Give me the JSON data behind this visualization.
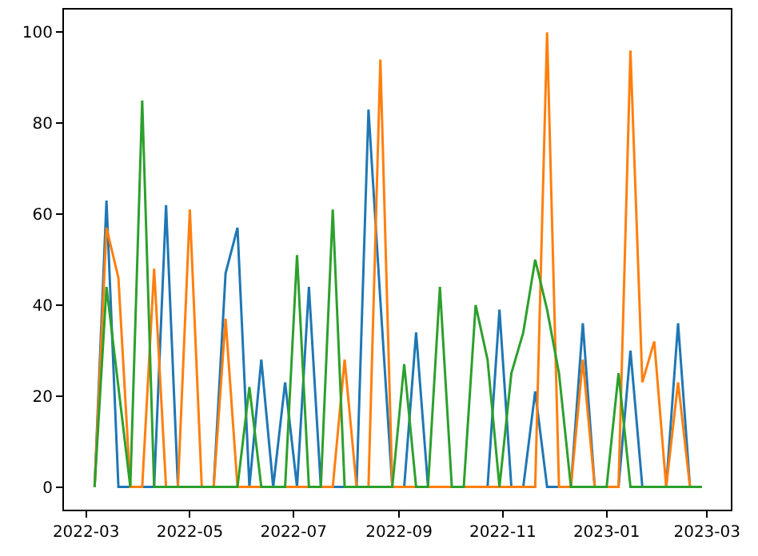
{
  "chart_data": {
    "type": "line",
    "x": [
      "2022-03-06",
      "2022-03-13",
      "2022-03-20",
      "2022-03-27",
      "2022-04-03",
      "2022-04-10",
      "2022-04-17",
      "2022-04-24",
      "2022-05-01",
      "2022-05-08",
      "2022-05-15",
      "2022-05-22",
      "2022-05-29",
      "2022-06-05",
      "2022-06-12",
      "2022-06-19",
      "2022-06-26",
      "2022-07-03",
      "2022-07-10",
      "2022-07-17",
      "2022-07-24",
      "2022-07-31",
      "2022-08-07",
      "2022-08-14",
      "2022-08-21",
      "2022-08-28",
      "2022-09-04",
      "2022-09-11",
      "2022-09-18",
      "2022-09-25",
      "2022-10-02",
      "2022-10-09",
      "2022-10-16",
      "2022-10-23",
      "2022-10-30",
      "2022-11-06",
      "2022-11-13",
      "2022-11-20",
      "2022-11-27",
      "2022-12-04",
      "2022-12-11",
      "2022-12-18",
      "2022-12-25",
      "2023-01-01",
      "2023-01-08",
      "2023-01-15",
      "2023-01-22",
      "2023-01-29",
      "2023-02-05",
      "2023-02-12",
      "2023-02-19",
      "2023-02-26"
    ],
    "series": [
      {
        "color": "#1f77b4",
        "values": [
          0,
          63,
          0,
          0,
          0,
          0,
          62,
          0,
          0,
          0,
          0,
          47,
          57,
          0,
          28,
          0,
          23,
          0,
          44,
          0,
          0,
          0,
          0,
          83,
          41,
          0,
          0,
          34,
          0,
          0,
          0,
          0,
          0,
          0,
          39,
          0,
          0,
          21,
          0,
          0,
          0,
          36,
          0,
          0,
          0,
          30,
          0,
          0,
          0,
          36,
          0,
          0
        ]
      },
      {
        "color": "#ff7f0e",
        "values": [
          0,
          57,
          46,
          0,
          0,
          48,
          0,
          0,
          61,
          0,
          0,
          37,
          0,
          0,
          0,
          0,
          0,
          0,
          0,
          0,
          0,
          28,
          0,
          0,
          94,
          0,
          0,
          0,
          0,
          0,
          0,
          0,
          0,
          0,
          0,
          0,
          0,
          0,
          100,
          0,
          0,
          28,
          0,
          0,
          0,
          96,
          23,
          32,
          0,
          23,
          0,
          0
        ]
      },
      {
        "color": "#2ca02c",
        "values": [
          0,
          44,
          22,
          0,
          85,
          0,
          0,
          0,
          0,
          0,
          0,
          0,
          0,
          22,
          0,
          0,
          0,
          51,
          0,
          0,
          61,
          0,
          0,
          0,
          0,
          0,
          27,
          0,
          0,
          44,
          0,
          0,
          40,
          28,
          0,
          25,
          34,
          50,
          39,
          25,
          0,
          0,
          0,
          0,
          25,
          0,
          0,
          0,
          0,
          0,
          0,
          0
        ]
      }
    ],
    "xlim": [
      "2022-02-16",
      "2023-03-15"
    ],
    "xticks": [
      "2022-03",
      "2022-05",
      "2022-07",
      "2022-09",
      "2022-11",
      "2023-01",
      "2023-03"
    ],
    "ylim": [
      -5,
      105
    ],
    "yticks": [
      0,
      20,
      40,
      60,
      80,
      100
    ],
    "line_style": "solid"
  }
}
